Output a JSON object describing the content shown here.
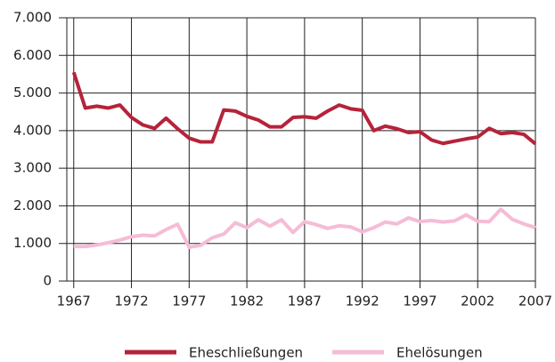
{
  "chart_data": {
    "type": "line",
    "x": [
      1967,
      1968,
      1969,
      1970,
      1971,
      1972,
      1973,
      1974,
      1975,
      1976,
      1977,
      1978,
      1979,
      1980,
      1981,
      1982,
      1983,
      1984,
      1985,
      1986,
      1987,
      1988,
      1989,
      1990,
      1991,
      1992,
      1993,
      1994,
      1995,
      1996,
      1997,
      1998,
      1999,
      2000,
      2001,
      2002,
      2003,
      2004,
      2005,
      2006,
      2007
    ],
    "series": [
      {
        "name": "Eheschließungen",
        "color": "#b5233a",
        "values": [
          5550,
          4600,
          4650,
          4600,
          4680,
          4350,
          4150,
          4060,
          4330,
          4050,
          3800,
          3700,
          3700,
          4550,
          4520,
          4380,
          4280,
          4100,
          4100,
          4350,
          4370,
          4330,
          4520,
          4680,
          4580,
          4540,
          4000,
          4120,
          4050,
          3950,
          3970,
          3750,
          3660,
          3720,
          3780,
          3830,
          4060,
          3920,
          3950,
          3900,
          3650
        ]
      },
      {
        "name": "Ehelösungen",
        "color": "#f5bcd6",
        "values": [
          920,
          920,
          960,
          1020,
          1090,
          1180,
          1220,
          1200,
          1370,
          1510,
          900,
          950,
          1150,
          1250,
          1550,
          1420,
          1630,
          1460,
          1630,
          1290,
          1580,
          1500,
          1400,
          1470,
          1440,
          1310,
          1420,
          1570,
          1520,
          1680,
          1580,
          1610,
          1570,
          1600,
          1760,
          1590,
          1580,
          1910,
          1640,
          1520,
          1420
        ]
      }
    ],
    "xlim": [
      1966.4,
      2007
    ],
    "xticks": [
      1967,
      1972,
      1977,
      1982,
      1987,
      1992,
      1997,
      2002,
      2007
    ],
    "ylim": [
      0,
      7000
    ],
    "yticks": [
      0,
      {
        "value": 1000,
        "label": "1.000"
      },
      {
        "value": 2000,
        "label": "2.000"
      },
      {
        "value": 3000,
        "label": "3.000"
      },
      {
        "value": 4000,
        "label": "4.000"
      },
      {
        "value": 5000,
        "label": "5.000"
      },
      {
        "value": 6000,
        "label": "6.000"
      },
      {
        "value": 7000,
        "label": "7.000"
      }
    ],
    "grid": true,
    "legend": "bottom"
  }
}
